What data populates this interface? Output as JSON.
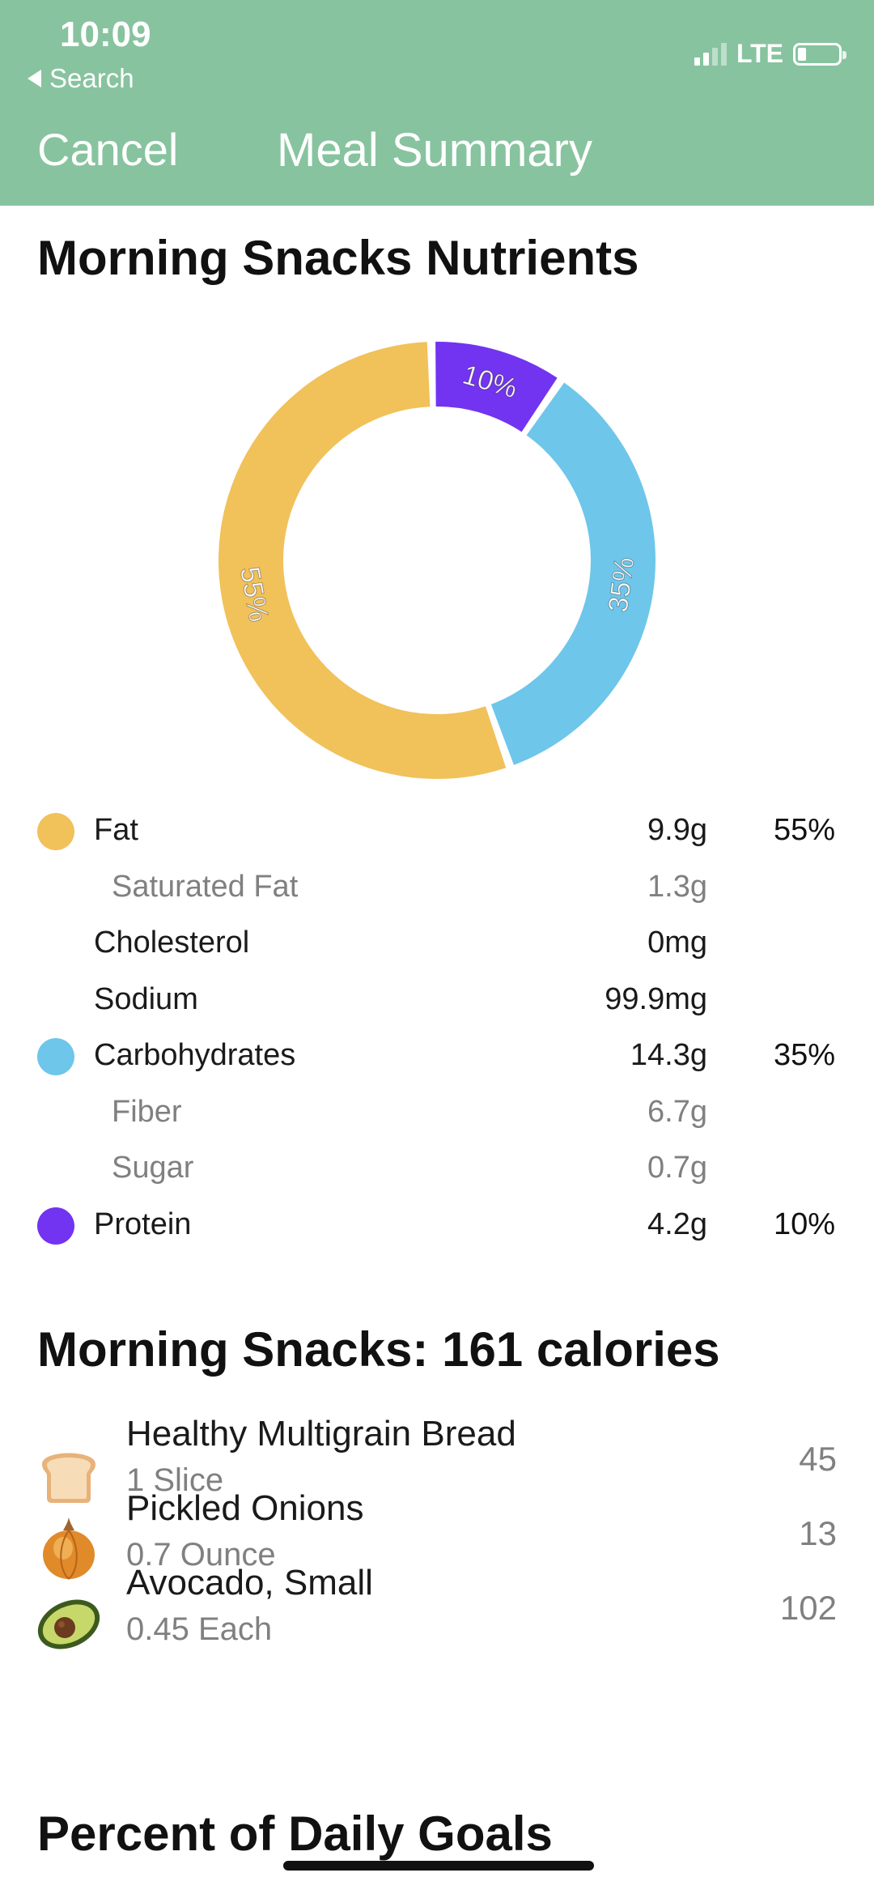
{
  "status_bar": {
    "time": "10:09",
    "back_label": "Search",
    "network": "LTE",
    "signal_bars_active": 2,
    "signal_bars_total": 4,
    "battery_level": 0.2
  },
  "nav": {
    "cancel_label": "Cancel",
    "title": "Meal Summary"
  },
  "nutrients_section": {
    "title": "Morning Snacks Nutrients"
  },
  "chart_data": {
    "type": "pie",
    "donut": true,
    "slices": [
      {
        "name": "Fat",
        "value": 55,
        "label": "55%",
        "color": "#f1c15a"
      },
      {
        "name": "Carbohydrates",
        "value": 35,
        "label": "35%",
        "color": "#6ec6ea"
      },
      {
        "name": "Protein",
        "value": 10,
        "label": "10%",
        "color": "#7234f0"
      }
    ]
  },
  "nutrients": [
    {
      "name": "Fat",
      "amount": "9.9g",
      "percent": "55%",
      "color": "#f1c15a",
      "level": "main"
    },
    {
      "name": "Saturated Fat",
      "amount": "1.3g",
      "percent": "",
      "color": "",
      "level": "sub"
    },
    {
      "name": "Cholesterol",
      "amount": "0mg",
      "percent": "",
      "color": "",
      "level": "main"
    },
    {
      "name": "Sodium",
      "amount": "99.9mg",
      "percent": "",
      "color": "",
      "level": "main"
    },
    {
      "name": "Carbohydrates",
      "amount": "14.3g",
      "percent": "35%",
      "color": "#6ec6ea",
      "level": "main"
    },
    {
      "name": "Fiber",
      "amount": "6.7g",
      "percent": "",
      "color": "",
      "level": "sub"
    },
    {
      "name": "Sugar",
      "amount": "0.7g",
      "percent": "",
      "color": "",
      "level": "sub"
    },
    {
      "name": "Protein",
      "amount": "4.2g",
      "percent": "10%",
      "color": "#7234f0",
      "level": "main"
    }
  ],
  "foods_section": {
    "title": "Morning Snacks: 161 calories"
  },
  "foods": [
    {
      "name": "Healthy Multigrain Bread",
      "quantity": "1 Slice",
      "calories": "45",
      "icon": "bread-icon"
    },
    {
      "name": "Pickled Onions",
      "quantity": "0.7 Ounce",
      "calories": "13",
      "icon": "onion-icon"
    },
    {
      "name": "Avocado, Small",
      "quantity": "0.45 Each",
      "calories": "102",
      "icon": "avocado-icon"
    }
  ],
  "goals_section": {
    "title": "Percent of Daily Goals"
  },
  "colors": {
    "header": "#87c39f",
    "fat": "#f1c15a",
    "carbohydrates": "#6ec6ea",
    "protein": "#7234f0"
  }
}
